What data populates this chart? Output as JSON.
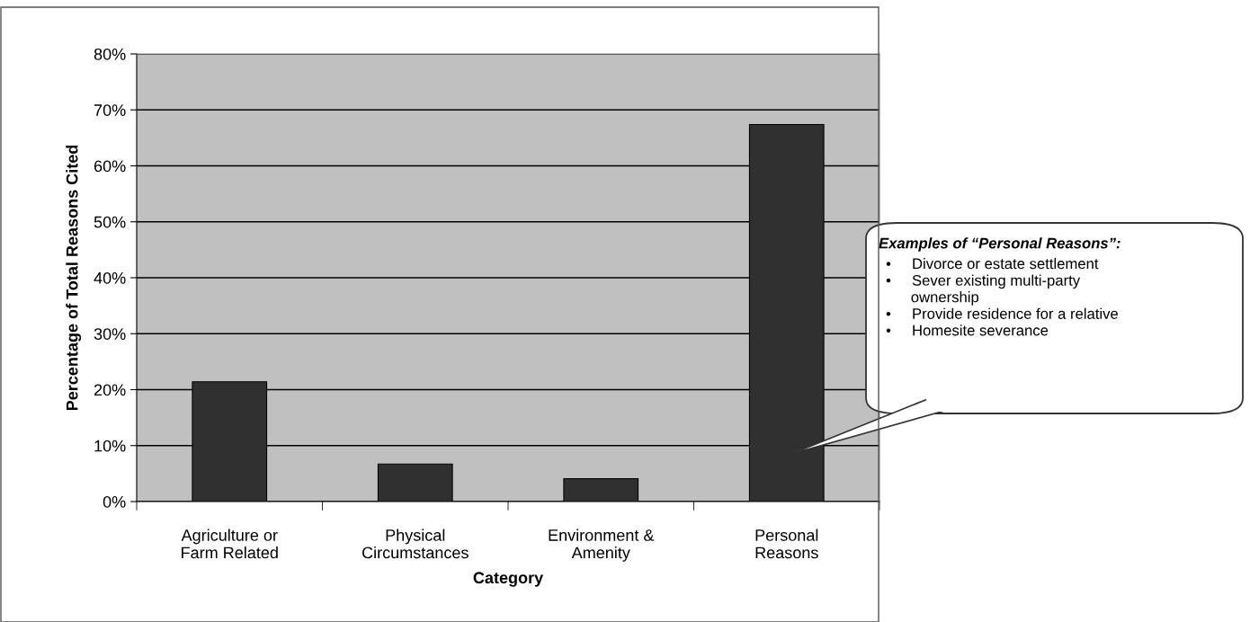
{
  "chart_data": {
    "type": "bar",
    "categories": [
      "Agriculture or\nFarm Related",
      "Physical\nCircumstances",
      "Environment &\nAmenity",
      "Personal\nReasons"
    ],
    "values": [
      21.4,
      6.7,
      4.1,
      67.4
    ],
    "color": "#303030",
    "xlabel": "Category",
    "ylabel": "Percentage of Total Reasons Cited",
    "ylim": [
      0,
      80
    ],
    "yticks": [
      {
        "value": 0,
        "label": "0%"
      },
      {
        "value": 10,
        "label": "10%"
      },
      {
        "value": 20,
        "label": "20%"
      },
      {
        "value": 30,
        "label": "30%"
      },
      {
        "value": 40,
        "label": "40%"
      },
      {
        "value": 50,
        "label": "50%"
      },
      {
        "value": 60,
        "label": "60%"
      },
      {
        "value": 70,
        "label": "70%"
      },
      {
        "value": 80,
        "label": "80%"
      }
    ],
    "grid": "y",
    "annotations": [
      "Examples of “Personal Reasons”:",
      "•\tDivorce or estate settlement\n•\tSever existing multi-party\n\townership\n•\tProvide residence for a relative\n•\tHomesite severance"
    ]
  }
}
